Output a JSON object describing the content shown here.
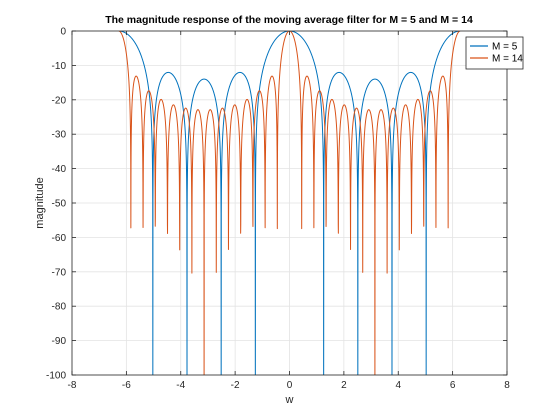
{
  "chart_data": {
    "type": "line",
    "title": "The magnitude response of the moving average filter for M = 5 and M = 14",
    "xlabel": "w",
    "ylabel": "magnitude",
    "xlim": [
      -8,
      8
    ],
    "ylim": [
      -100,
      0
    ],
    "xticks": [
      -8,
      -6,
      -4,
      -2,
      0,
      2,
      4,
      6,
      8
    ],
    "yticks": [
      0,
      -10,
      -20,
      -30,
      -40,
      -50,
      -60,
      -70,
      -80,
      -90,
      -100
    ],
    "grid": true,
    "legend_position": "top-right",
    "x_domain": [
      -6.2832,
      6.2832
    ],
    "series": [
      {
        "name": "M = 5",
        "color": "#0072BD",
        "formula": "20*log10(|sin(M*w/2)/(M*sin(w/2))|)",
        "M": 5
      },
      {
        "name": "M = 14",
        "color": "#D95319",
        "formula": "20*log10(|sin(M*w/2)/(M*sin(w/2))|)",
        "M": 14
      }
    ]
  }
}
